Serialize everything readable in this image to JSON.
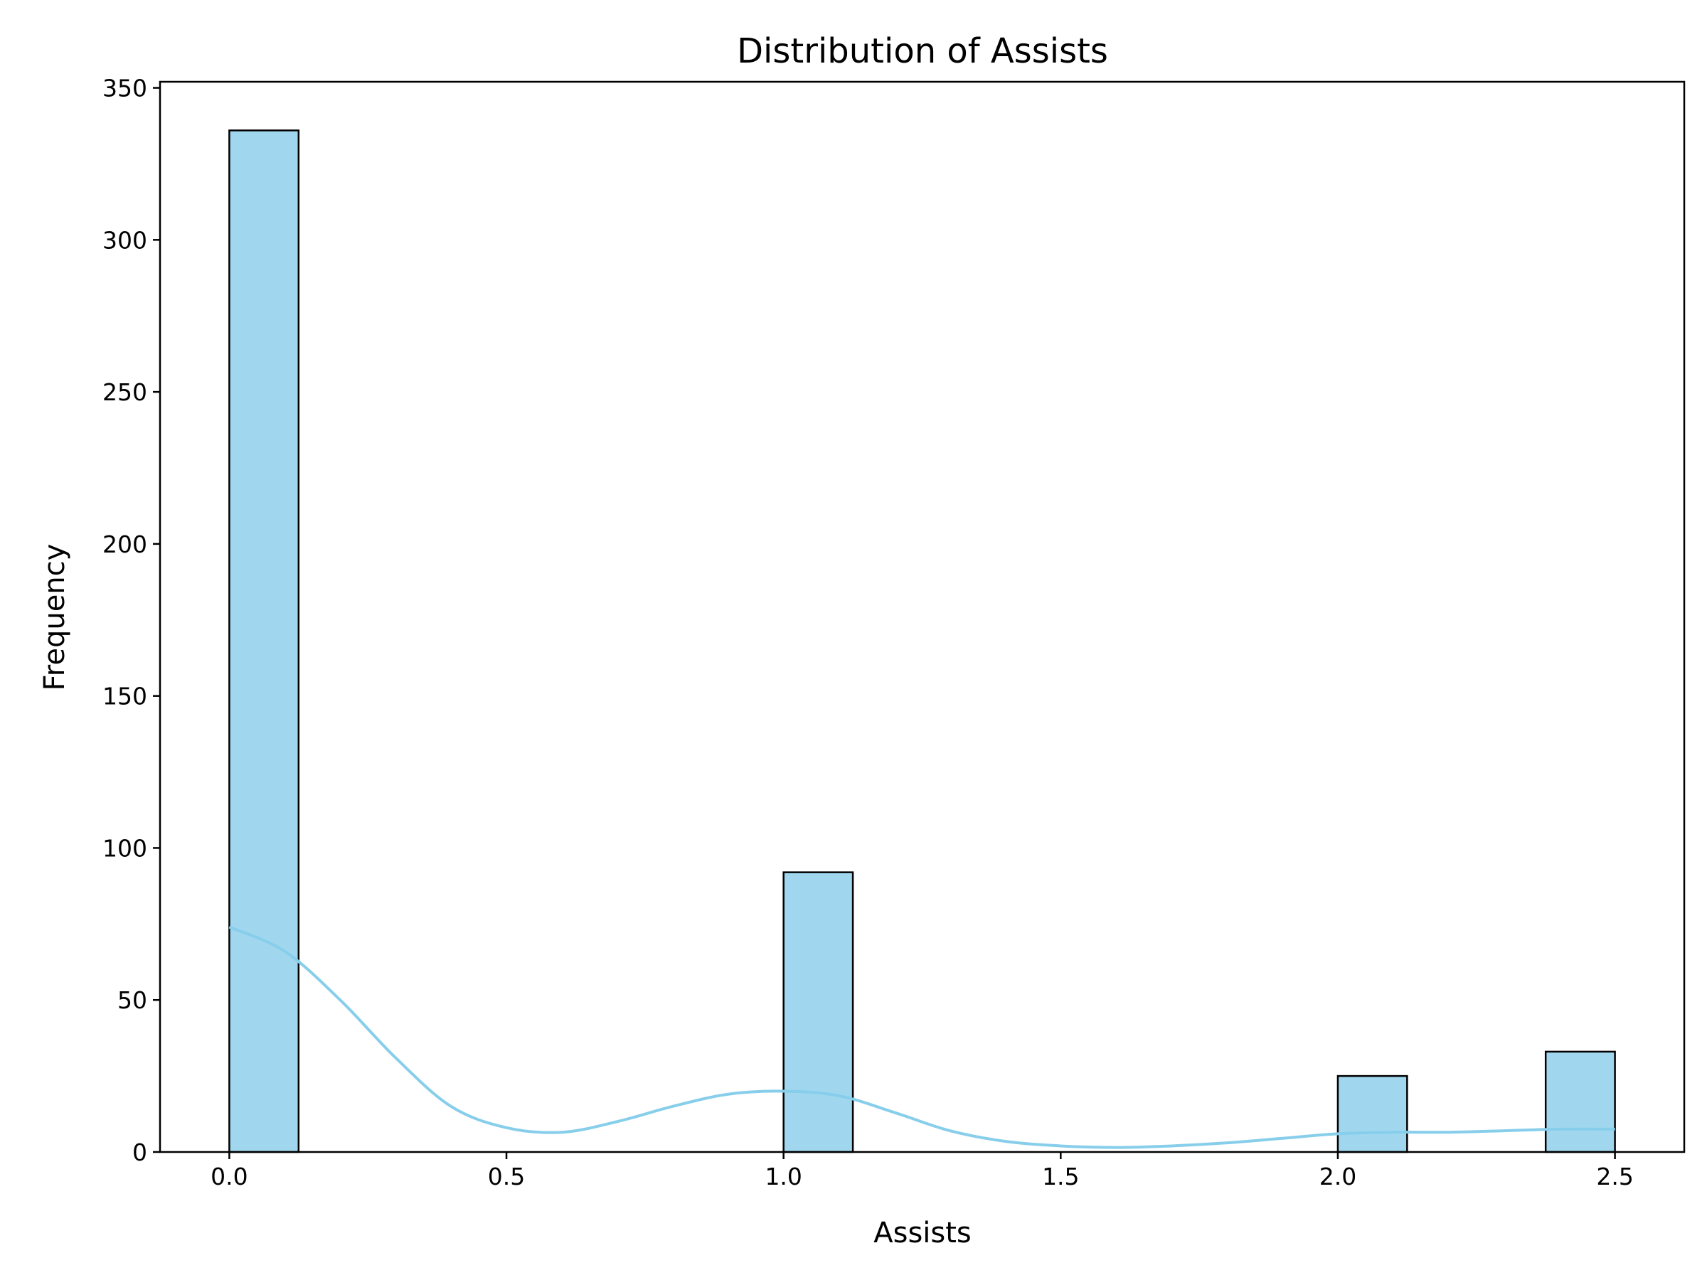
{
  "chart_data": {
    "type": "bar",
    "title": "Distribution of Assists",
    "xlabel": "Assists",
    "ylabel": "Frequency",
    "xlim": [
      -0.125,
      2.625
    ],
    "ylim": [
      0,
      352
    ],
    "xticks": [
      "0.0",
      "0.5",
      "1.0",
      "1.5",
      "2.0",
      "2.5"
    ],
    "xtick_values": [
      0.0,
      0.5,
      1.0,
      1.5,
      2.0,
      2.5
    ],
    "yticks": [
      "0",
      "50",
      "100",
      "150",
      "200",
      "250",
      "300",
      "350"
    ],
    "ytick_values": [
      0,
      50,
      100,
      150,
      200,
      250,
      300,
      350
    ],
    "bar_width": 0.125,
    "bars": [
      {
        "x": 0.0,
        "value": 336
      },
      {
        "x": 1.0,
        "value": 92
      },
      {
        "x": 2.0,
        "value": 25
      },
      {
        "x": 2.375,
        "value": 33
      }
    ],
    "kde": [
      [
        0.0,
        74
      ],
      [
        0.1,
        66
      ],
      [
        0.2,
        50
      ],
      [
        0.3,
        31
      ],
      [
        0.4,
        15
      ],
      [
        0.5,
        8
      ],
      [
        0.6,
        6.5
      ],
      [
        0.7,
        10
      ],
      [
        0.8,
        15
      ],
      [
        0.9,
        19
      ],
      [
        1.0,
        20
      ],
      [
        1.1,
        18.5
      ],
      [
        1.2,
        13
      ],
      [
        1.3,
        7
      ],
      [
        1.4,
        3.5
      ],
      [
        1.5,
        2
      ],
      [
        1.6,
        1.5
      ],
      [
        1.7,
        2
      ],
      [
        1.8,
        3
      ],
      [
        1.9,
        4.5
      ],
      [
        2.0,
        6
      ],
      [
        2.1,
        6.5
      ],
      [
        2.2,
        6.5
      ],
      [
        2.3,
        7
      ],
      [
        2.4,
        7.5
      ],
      [
        2.5,
        7.5
      ]
    ],
    "grid": false,
    "colors": {
      "bar_fill": "#a0d7ef",
      "bar_edge": "#000000",
      "kde": "#87ceeb"
    }
  }
}
